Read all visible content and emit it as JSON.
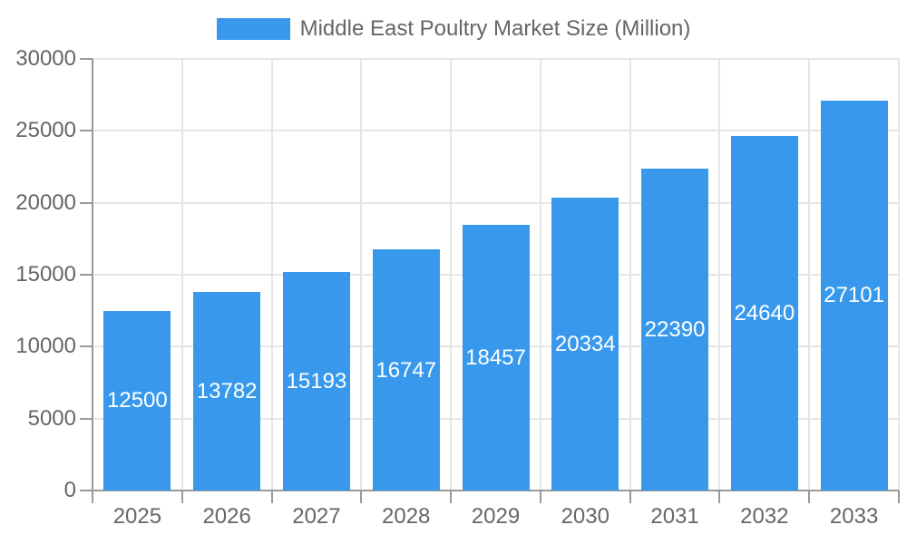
{
  "chart_data": {
    "type": "bar",
    "title": "Middle East Poultry Market Size (Million)",
    "categories": [
      "2025",
      "2026",
      "2027",
      "2028",
      "2029",
      "2030",
      "2031",
      "2032",
      "2033"
    ],
    "values": [
      12500,
      13782,
      15193,
      16747,
      18457,
      20334,
      22390,
      24640,
      27101
    ],
    "xlabel": "",
    "ylabel": "",
    "ylim": [
      0,
      30000
    ],
    "yticks": [
      0,
      5000,
      10000,
      15000,
      20000,
      25000,
      30000
    ],
    "grid": true,
    "legend": {
      "label": "Middle East Poultry Market Size (Million)",
      "position": "top-center"
    },
    "colors": {
      "bar": "#3899EC",
      "grid": "#E6E6E6",
      "axis": "#999999",
      "tick_text": "#666666",
      "legend_text": "#666666",
      "data_label": "#FFFFFF",
      "background": "#FFFFFF"
    }
  }
}
